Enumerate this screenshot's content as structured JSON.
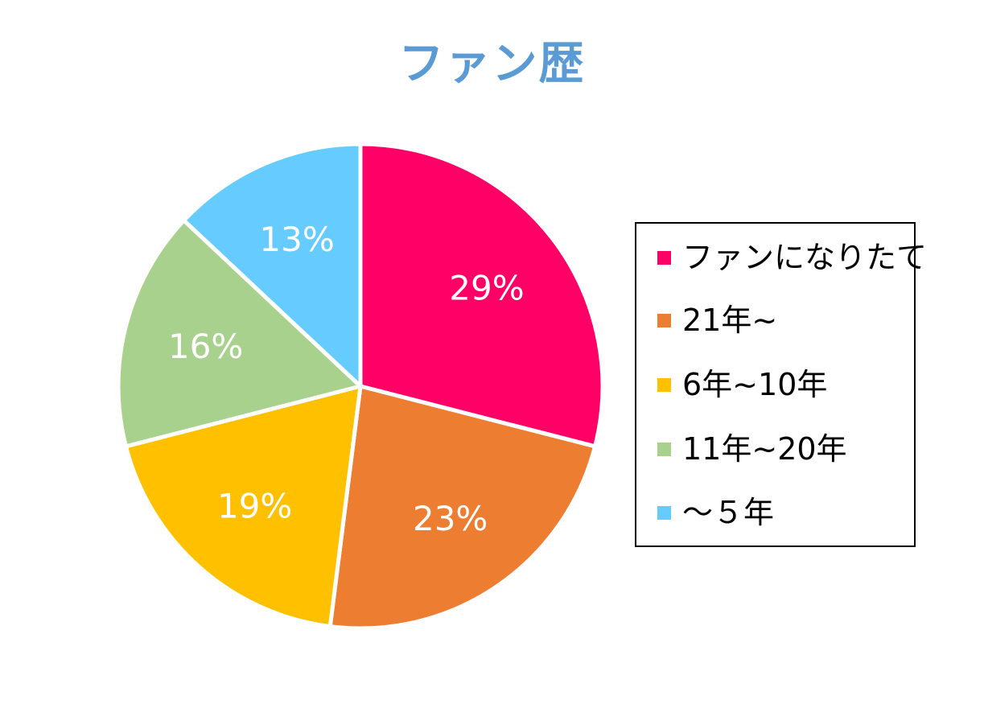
{
  "chart_data": {
    "type": "pie",
    "title": "ファン歴",
    "categories": [
      "ファンになりたて",
      "21年~",
      "6年~10年",
      "11年~20年",
      "～５年"
    ],
    "values": [
      29,
      23,
      19,
      16,
      13
    ],
    "data_labels": [
      "29%",
      "23%",
      "19%",
      "16%",
      "13%"
    ],
    "colors": [
      "#ff0066",
      "#ed7d31",
      "#ffc000",
      "#a9d18e",
      "#66ccff"
    ],
    "legend": {
      "placement": "right",
      "items": [
        {
          "label": "ファンになりたて",
          "color": "#ff0066"
        },
        {
          "label": "21年~",
          "color": "#ed7d31"
        },
        {
          "label": "6年~10年",
          "color": "#ffc000"
        },
        {
          "label": "11年~20年",
          "color": "#a9d18e"
        },
        {
          "label": "～５年",
          "color": "#66ccff"
        }
      ]
    }
  }
}
